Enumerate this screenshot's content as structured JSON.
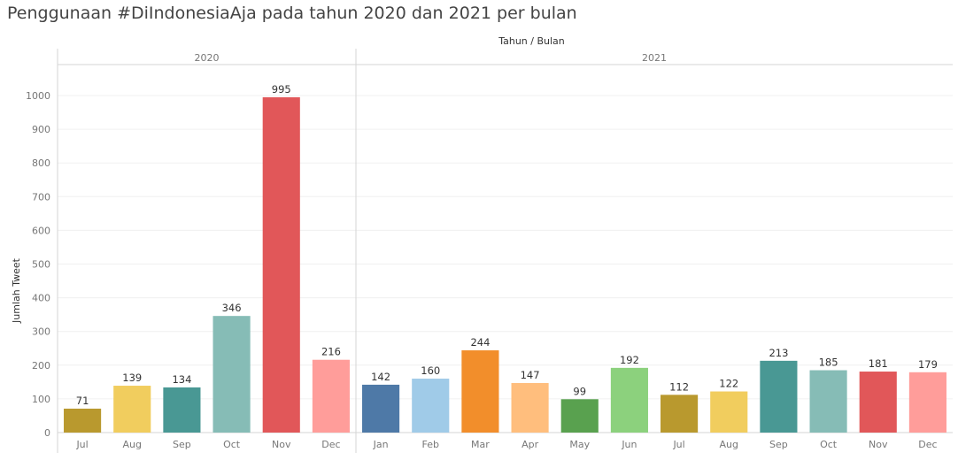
{
  "chart_data": {
    "type": "bar",
    "title": "Penggunaan #DiIndonesiaAja pada tahun 2020 dan 2021 per bulan",
    "column_header": "Tahun / Bulan",
    "ylabel": "Jumlah Tweet",
    "ylim": [
      0,
      1000
    ],
    "yticks": [
      0,
      100,
      200,
      300,
      400,
      500,
      600,
      700,
      800,
      900,
      1000
    ],
    "grid": true,
    "groups": [
      {
        "name": "2020",
        "categories": [
          "Jul",
          "Aug",
          "Sep",
          "Oct",
          "Nov",
          "Dec"
        ],
        "values": [
          71,
          139,
          134,
          346,
          995,
          216
        ],
        "colors": [
          "#b9992e",
          "#f1cd5e",
          "#499894",
          "#86bcb6",
          "#e15759",
          "#ff9d9a"
        ]
      },
      {
        "name": "2021",
        "categories": [
          "Jan",
          "Feb",
          "Mar",
          "Apr",
          "May",
          "Jun",
          "Jul",
          "Aug",
          "Sep",
          "Oct",
          "Nov",
          "Dec"
        ],
        "values": [
          142,
          160,
          244,
          147,
          99,
          192,
          112,
          122,
          213,
          185,
          181,
          179
        ],
        "colors": [
          "#4e79a7",
          "#a0cbe8",
          "#f28e2b",
          "#ffbe7d",
          "#59a14f",
          "#8cd17d",
          "#b9992e",
          "#f1cd5e",
          "#499894",
          "#86bcb6",
          "#e15759",
          "#ff9d9a"
        ]
      }
    ]
  }
}
